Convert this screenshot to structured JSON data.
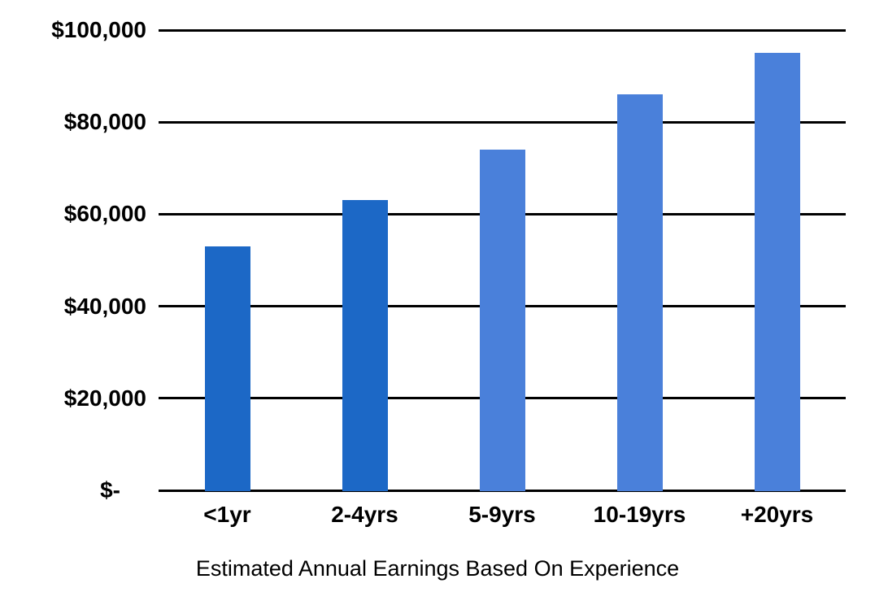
{
  "chart_data": {
    "type": "bar",
    "title": "Estimated Annual Earnings Based On Experience",
    "categories": [
      "<1yr",
      "2-4yrs",
      "5-9yrs",
      "10-19yrs",
      "+20yrs"
    ],
    "values": [
      53000,
      63000,
      74000,
      86000,
      95000
    ],
    "bar_colors": [
      "#1C68C6",
      "#1C68C6",
      "#4A80DA",
      "#4A80DA",
      "#4A80DA"
    ],
    "y_ticks": [
      {
        "label": "$100,000",
        "value": 100000
      },
      {
        "label": "$80,000",
        "value": 80000
      },
      {
        "label": "$60,000",
        "value": 60000
      },
      {
        "label": "$40,000",
        "value": 40000
      },
      {
        "label": "$20,000",
        "value": 20000
      },
      {
        "label": "$-",
        "value": 0
      }
    ],
    "ylim": [
      0,
      100000
    ],
    "xlabel": "",
    "ylabel": "",
    "grid": true,
    "legend": "none",
    "gridline_color": "#000000",
    "background": "#FFFFFF",
    "text_color": "#000000"
  }
}
